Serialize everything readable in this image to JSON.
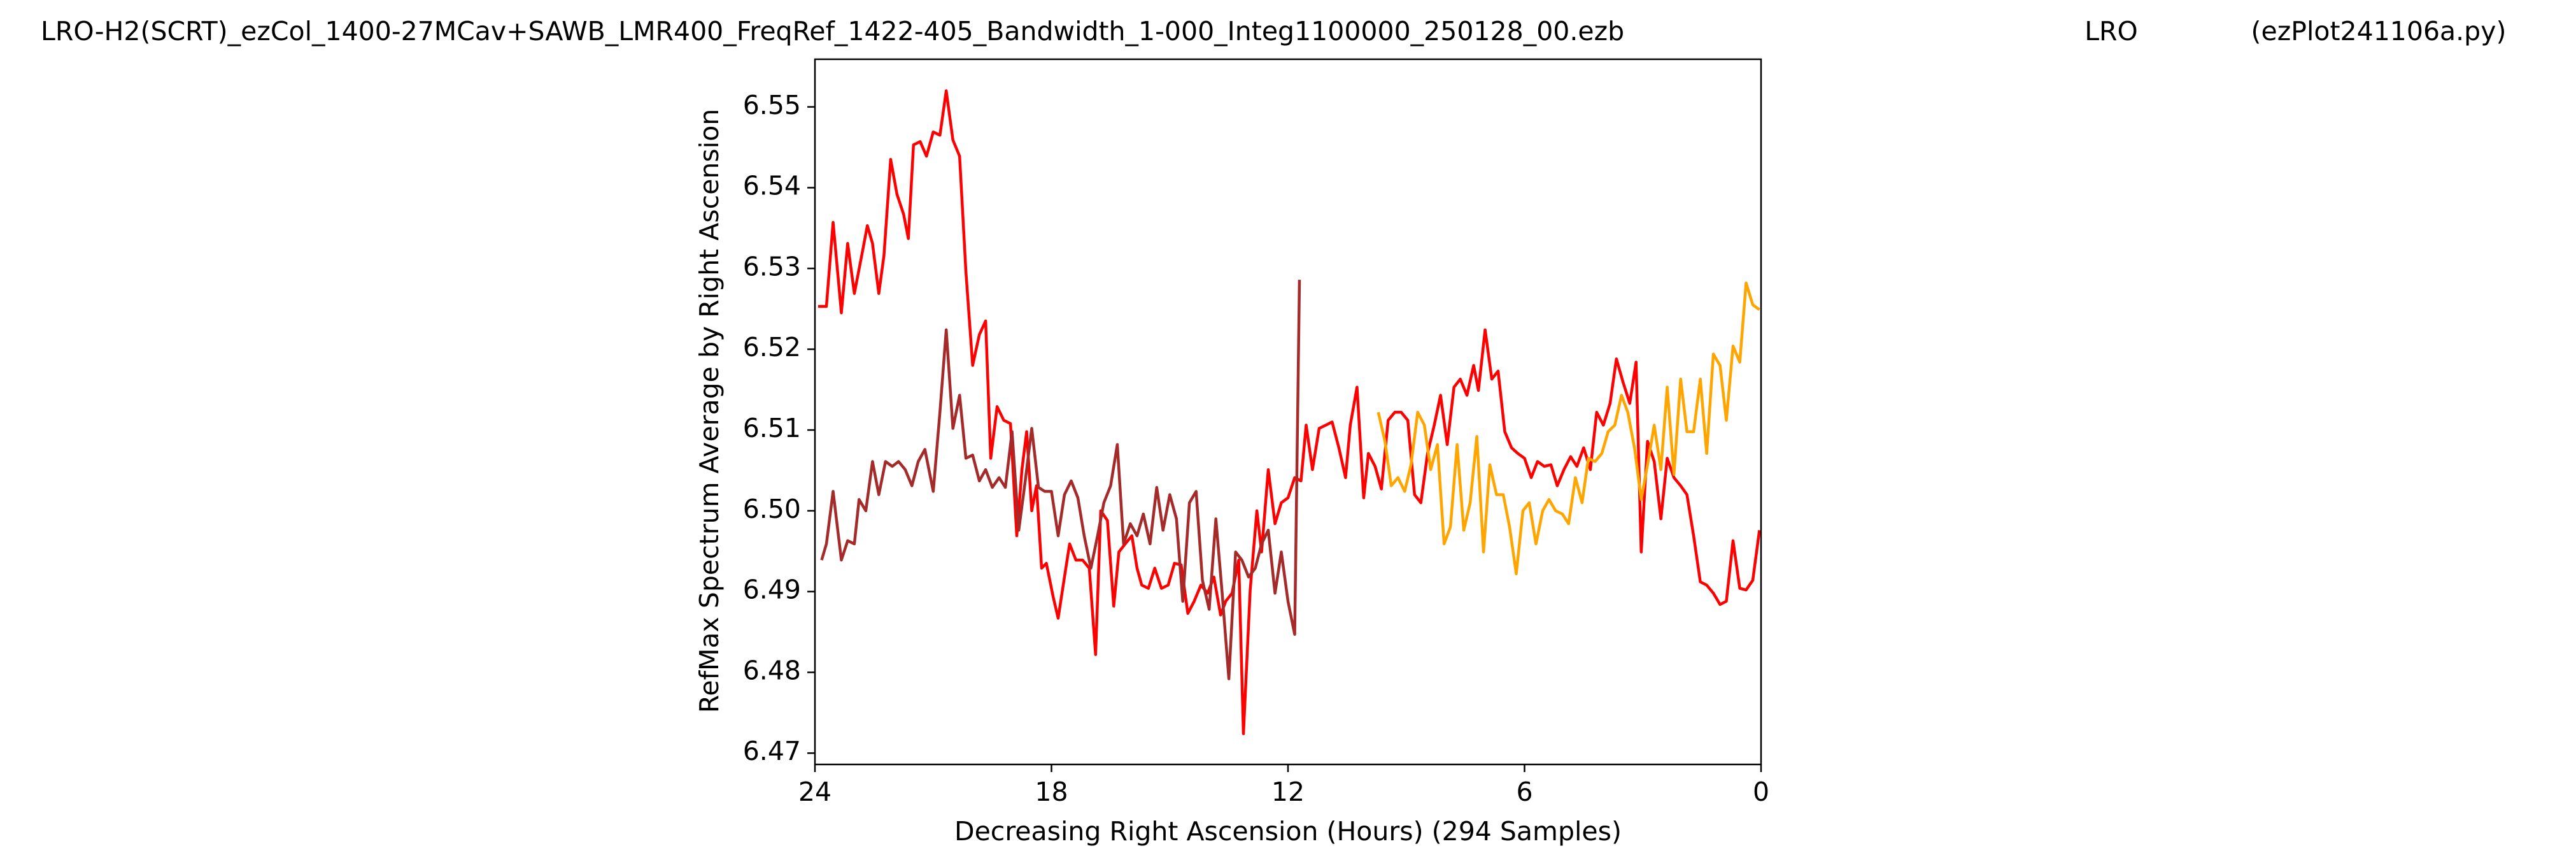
{
  "chart_data": {
    "type": "line",
    "title_left": "LRO-H2(SCRT)_ezCol_1400-27MCav+SAWB_LMR400_FreqRef_1422-405_Bandwidth_1-000_Integ1100000_250128_00.ezb",
    "title": "LRO",
    "title_right": "(ezPlot241106a.py)",
    "xlabel": "Decreasing Right Ascension (Hours) (294 Samples)",
    "ylabel": "RefMax Spectrum Average by Right Ascension",
    "xlim": [
      24,
      0
    ],
    "xticks": [
      24,
      18,
      12,
      6,
      0
    ],
    "ylim": [
      6.4686,
      6.5559
    ],
    "yticks": [
      6.47,
      6.48,
      6.49,
      {
        "value": 6.5,
        "label": "6.50"
      },
      6.51,
      6.52,
      6.53,
      6.54,
      6.55
    ],
    "grid": false,
    "series": [
      {
        "color": "#ff0000",
        "x": [
          23.92,
          23.71,
          23.54,
          23.33,
          23.17,
          23.0,
          22.79,
          22.67,
          22.54,
          22.38,
          22.25,
          22.08,
          21.92,
          21.75,
          21.63,
          21.5,
          21.33,
          21.17,
          21.0,
          20.83,
          20.67,
          20.5,
          20.33,
          20.17,
          20.0,
          19.83,
          19.67,
          19.54,
          19.38,
          19.21,
          19.04,
          18.88,
          18.75,
          18.63,
          18.5,
          18.38,
          18.25,
          18.13,
          17.96,
          17.83,
          17.67,
          17.54,
          17.38,
          17.21,
          17.04,
          16.88,
          16.75,
          16.58,
          16.42,
          16.29,
          16.13,
          15.96,
          15.83,
          15.71,
          15.54,
          15.38,
          15.21,
          15.04,
          14.88,
          14.71,
          14.54,
          14.38,
          14.21,
          14.04,
          13.88,
          13.71,
          13.58,
          13.42,
          13.25,
          13.13,
          12.96,
          12.79,
          12.67,
          12.5,
          12.33,
          12.17,
          12.0,
          11.83,
          11.67,
          11.54,
          11.38,
          11.21,
          11.04,
          10.88,
          10.71,
          10.54,
          10.42,
          10.25,
          10.08,
          9.96,
          9.79,
          9.63,
          9.46,
          9.29,
          9.13,
          8.96,
          8.79,
          8.63,
          8.46,
          8.29,
          8.13,
          7.96,
          7.79,
          7.63,
          7.46,
          7.29,
          7.17,
          7.0,
          6.83,
          6.67,
          6.5,
          6.33,
          6.17,
          6.0,
          5.83,
          5.67,
          5.5,
          5.33,
          5.17,
          5.0,
          4.83,
          4.67,
          4.5,
          4.33,
          4.17,
          4.0,
          3.83,
          3.67,
          3.5,
          3.33,
          3.17,
          3.04,
          2.88,
          2.71,
          2.54,
          2.38,
          2.21,
          2.04,
          1.88,
          1.71,
          1.54,
          1.38,
          1.21,
          1.04,
          0.88,
          0.71,
          0.54,
          0.38,
          0.21,
          0.04
        ],
        "values": [
          6.5253,
          6.5253,
          6.5357,
          6.5245,
          6.5331,
          6.5269,
          6.5322,
          6.5353,
          6.5331,
          6.5269,
          6.5316,
          6.5435,
          6.5392,
          6.5367,
          6.5337,
          6.5453,
          6.5457,
          6.5439,
          6.5469,
          6.5465,
          6.552,
          6.5459,
          6.5439,
          6.5296,
          6.518,
          6.5218,
          6.5235,
          6.5065,
          6.5129,
          6.5112,
          6.5108,
          6.4969,
          6.5051,
          6.5098,
          6.5,
          6.5031,
          6.4929,
          6.4935,
          6.4894,
          6.4867,
          6.4918,
          6.4959,
          6.4939,
          6.4939,
          6.4929,
          6.4822,
          6.5,
          6.4988,
          6.4882,
          6.4949,
          6.4959,
          6.4969,
          6.4929,
          6.4908,
          6.4904,
          6.4929,
          6.4904,
          6.4908,
          6.4935,
          6.4933,
          6.4873,
          6.4888,
          6.4908,
          6.4898,
          6.4918,
          6.4871,
          6.4888,
          6.4898,
          6.4939,
          6.4724,
          6.4902,
          6.5,
          6.4949,
          6.5051,
          6.4984,
          6.501,
          6.5016,
          6.5041,
          6.5037,
          6.5106,
          6.5051,
          6.5102,
          6.5106,
          6.511,
          6.5078,
          6.5041,
          6.5106,
          6.5153,
          6.5016,
          6.5071,
          6.5055,
          6.5027,
          6.5112,
          6.5122,
          6.5122,
          6.5112,
          6.502,
          6.501,
          6.5071,
          6.5106,
          6.5143,
          6.5082,
          6.5153,
          6.5163,
          6.5143,
          6.518,
          6.5149,
          6.5224,
          6.5163,
          6.5173,
          6.5098,
          6.5078,
          6.5071,
          6.5065,
          6.5041,
          6.5061,
          6.5055,
          6.5057,
          6.5031,
          6.5051,
          6.5067,
          6.5055,
          6.5078,
          6.5051,
          6.5122,
          6.5106,
          6.5133,
          6.5188,
          6.5159,
          6.5133,
          6.5184,
          6.4949,
          6.5086,
          6.5061,
          6.499,
          6.5065,
          6.5041,
          6.5031,
          6.502,
          6.4969,
          6.4912,
          6.4908,
          6.4898,
          6.4884,
          6.4888,
          6.4963,
          6.4904,
          6.4902,
          6.4914,
          6.4976
        ]
      },
      {
        "color": "#a52a2a",
        "x": [
          23.83,
          23.71,
          23.54,
          23.33,
          23.17,
          23.0,
          22.88,
          22.71,
          22.54,
          22.38,
          22.21,
          22.04,
          21.88,
          21.71,
          21.54,
          21.38,
          21.21,
          21.0,
          20.83,
          20.67,
          20.5,
          20.33,
          20.17,
          20.0,
          19.83,
          19.67,
          19.5,
          19.33,
          19.17,
          19.0,
          18.83,
          18.67,
          18.5,
          18.33,
          18.17,
          18.0,
          17.83,
          17.67,
          17.5,
          17.33,
          17.17,
          17.0,
          16.83,
          16.67,
          16.5,
          16.33,
          16.17,
          16.0,
          15.83,
          15.67,
          15.5,
          15.33,
          15.17,
          15.0,
          14.83,
          14.67,
          14.5,
          14.33,
          14.17,
          14.0,
          13.83,
          13.67,
          13.5,
          13.33,
          13.17,
          13.0,
          12.83,
          12.67,
          12.5,
          12.33,
          12.17,
          12.0,
          11.83,
          11.71
        ],
        "values": [
          6.4939,
          6.4959,
          6.5024,
          6.4939,
          6.4963,
          6.4959,
          6.5014,
          6.5,
          6.5061,
          6.502,
          6.5061,
          6.5055,
          6.5061,
          6.5051,
          6.5031,
          6.5061,
          6.5076,
          6.5024,
          6.5122,
          6.5224,
          6.5102,
          6.5143,
          6.5065,
          6.5069,
          6.5037,
          6.5051,
          6.5029,
          6.5041,
          6.5029,
          6.5098,
          6.4976,
          6.5035,
          6.5102,
          6.5029,
          6.5024,
          6.5024,
          6.4969,
          6.502,
          6.5037,
          6.5016,
          6.4969,
          6.4929,
          6.4969,
          6.501,
          6.5031,
          6.5082,
          6.4959,
          6.4984,
          6.4969,
          6.4996,
          6.4959,
          6.5029,
          6.4976,
          6.502,
          6.499,
          6.4888,
          6.501,
          6.5024,
          6.4914,
          6.4878,
          6.499,
          6.4898,
          6.4792,
          6.4949,
          6.4939,
          6.4918,
          6.4929,
          6.4959,
          6.4976,
          6.4898,
          6.4949,
          6.4888,
          6.4847,
          6.5286
        ]
      },
      {
        "color": "#ffa500",
        "x": [
          9.71,
          9.54,
          9.38,
          9.21,
          9.04,
          8.88,
          8.71,
          8.54,
          8.38,
          8.21,
          8.04,
          7.88,
          7.71,
          7.54,
          7.38,
          7.21,
          7.04,
          6.88,
          6.71,
          6.54,
          6.38,
          6.21,
          6.04,
          5.88,
          5.71,
          5.54,
          5.38,
          5.21,
          5.04,
          4.88,
          4.71,
          4.54,
          4.38,
          4.21,
          4.04,
          3.88,
          3.71,
          3.54,
          3.38,
          3.21,
          3.04,
          2.88,
          2.71,
          2.54,
          2.38,
          2.21,
          2.04,
          1.88,
          1.71,
          1.54,
          1.38,
          1.21,
          1.04,
          0.88,
          0.71,
          0.54,
          0.38,
          0.21,
          0.04
        ],
        "values": [
          6.5122,
          6.5086,
          6.5031,
          6.5041,
          6.5024,
          6.5057,
          6.5122,
          6.5106,
          6.5051,
          6.5082,
          6.4959,
          6.498,
          6.5082,
          6.4976,
          6.501,
          6.5092,
          6.4949,
          6.5057,
          6.502,
          6.502,
          6.498,
          6.4922,
          6.5,
          6.501,
          6.4959,
          6.5,
          6.5014,
          6.5,
          6.4996,
          6.4984,
          6.5041,
          6.501,
          6.5065,
          6.5061,
          6.5071,
          6.5098,
          6.5106,
          6.5143,
          6.5122,
          6.5078,
          6.5014,
          6.5057,
          6.5106,
          6.5051,
          6.5153,
          6.5045,
          6.5163,
          6.5098,
          6.5098,
          6.5163,
          6.5071,
          6.5194,
          6.518,
          6.5112,
          6.5204,
          6.5184,
          6.5282,
          6.5255,
          6.5249
        ]
      }
    ]
  }
}
